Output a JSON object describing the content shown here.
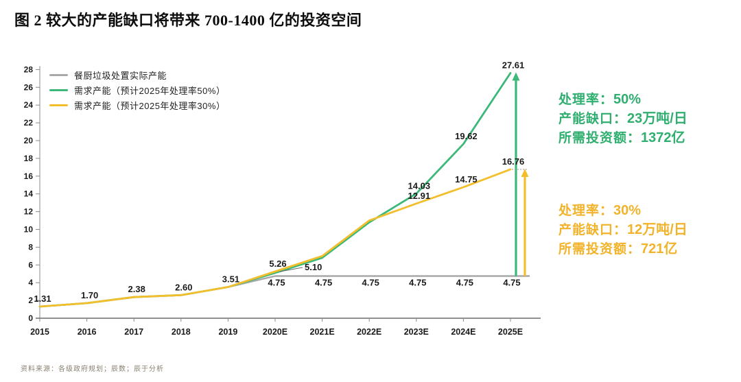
{
  "figure": {
    "title": "图 2 较大的产能缺口将带来 700-1400 亿的投资空间",
    "source_note": "资料来源：各级政府规划；辰数；辰于分析"
  },
  "annotations": {
    "green": {
      "color": "#2FAF6F",
      "lines": [
        {
          "label": "处理率：",
          "value": "50%"
        },
        {
          "label": "产能缺口：",
          "value": "23万吨/日"
        },
        {
          "label": "所需投资额：",
          "value": "1372亿"
        }
      ]
    },
    "gold": {
      "color": "#F2B32A",
      "lines": [
        {
          "label": "处理率：",
          "value": "30%"
        },
        {
          "label": "产能缺口：",
          "value": "12万吨/日"
        },
        {
          "label": "所需投资额：",
          "value": "721亿"
        }
      ]
    }
  },
  "chart_data": {
    "type": "line",
    "title": "",
    "xlabel": "",
    "ylabel": "",
    "ylim": [
      0,
      28
    ],
    "y_tick_step": 2,
    "grid": false,
    "legend_position": "top-left",
    "categories": [
      "2015",
      "2016",
      "2017",
      "2018",
      "2019",
      "2020E",
      "2021E",
      "2022E",
      "2023E",
      "2024E",
      "2025E"
    ],
    "series": [
      {
        "name": "餐厨垃圾处置实际产能",
        "color": "#A8A8A8",
        "values": [
          1.31,
          1.7,
          2.38,
          2.6,
          3.51,
          4.75,
          4.75,
          4.75,
          4.75,
          4.75,
          4.75
        ],
        "labeled_points": [
          {
            "i": 0,
            "text": "1.31",
            "pos": "above"
          },
          {
            "i": 1,
            "text": "1.70",
            "pos": "above"
          },
          {
            "i": 2,
            "text": "2.38",
            "pos": "above"
          },
          {
            "i": 3,
            "text": "2.60",
            "pos": "above"
          },
          {
            "i": 4,
            "text": "3.51",
            "pos": "above"
          },
          {
            "i": 5,
            "text": "4.75",
            "pos": "below"
          },
          {
            "i": 6,
            "text": "4.75",
            "pos": "below"
          },
          {
            "i": 7,
            "text": "4.75",
            "pos": "below"
          },
          {
            "i": 8,
            "text": "4.75",
            "pos": "below"
          },
          {
            "i": 9,
            "text": "4.75",
            "pos": "below"
          },
          {
            "i": 10,
            "text": "4.75",
            "pos": "below"
          }
        ]
      },
      {
        "name": "需求产能（预计2025年处理率50%）",
        "color": "#3CB878",
        "values": [
          1.31,
          1.7,
          2.38,
          2.6,
          3.51,
          5.1,
          6.8,
          10.8,
          14.03,
          19.62,
          27.61
        ],
        "labeled_points": [
          {
            "i": 5,
            "text": "5.10",
            "pos": "right-leader"
          },
          {
            "i": 8,
            "text": "14.03",
            "pos": "above"
          },
          {
            "i": 9,
            "text": "19.62",
            "pos": "above"
          },
          {
            "i": 10,
            "text": "27.61",
            "pos": "above"
          }
        ]
      },
      {
        "name": "需求产能（预计2025年处理率30%）",
        "color": "#F2BE2B",
        "values": [
          1.31,
          1.7,
          2.38,
          2.6,
          3.51,
          5.26,
          7.0,
          11.0,
          12.91,
          14.75,
          16.76
        ],
        "labeled_points": [
          {
            "i": 5,
            "text": "5.26",
            "pos": "above"
          },
          {
            "i": 8,
            "text": "12.91",
            "pos": "above"
          },
          {
            "i": 9,
            "text": "14.75",
            "pos": "above"
          },
          {
            "i": 10,
            "text": "16.76",
            "pos": "above"
          }
        ]
      }
    ],
    "gap_arrows": [
      {
        "at_category": "2025E",
        "from": 4.75,
        "to": 27.61,
        "color": "#3CB878",
        "offset_x": 8,
        "dashed_connector": false
      },
      {
        "at_category": "2025E",
        "from": 4.75,
        "to": 16.76,
        "color": "#F2BE2B",
        "offset_x": 21,
        "dashed_connector": true
      }
    ]
  }
}
